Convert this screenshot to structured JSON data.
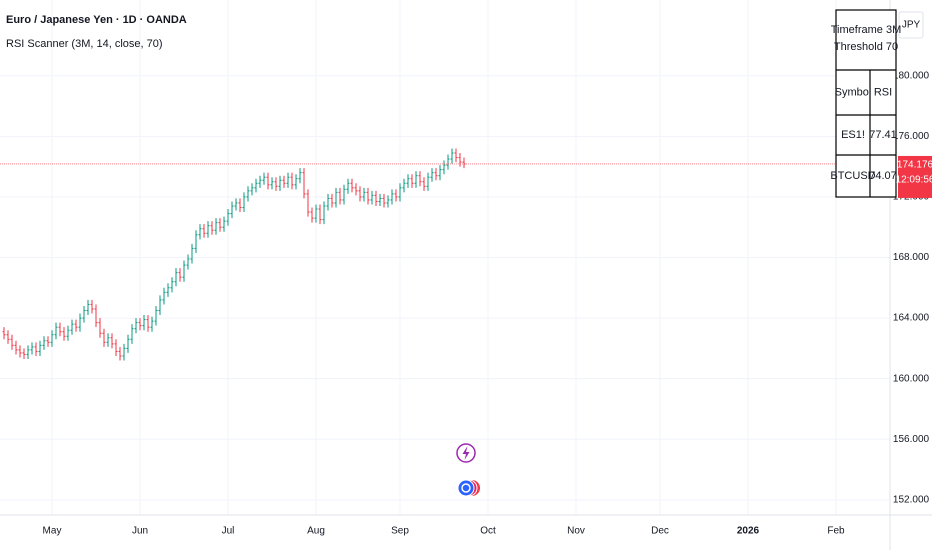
{
  "chart_data": {
    "type": "ohlc",
    "title": "Euro / Japanese Yen · 1D · OANDA",
    "subtitle": "RSI Scanner (3M, 14, close, 70)",
    "y_axis_label": "JPY",
    "up_color": "#089981",
    "down_color": "#f23645",
    "grid": true,
    "last_price": 174.176,
    "countdown": "12:09:56",
    "last_price_color": "#f23645",
    "xlim": [
      -1,
      221.5
    ],
    "xticks": [
      {
        "value": 12,
        "label": "May"
      },
      {
        "value": 34,
        "label": "Jun"
      },
      {
        "value": 56,
        "label": "Jul"
      },
      {
        "value": 78,
        "label": "Aug"
      },
      {
        "value": 99,
        "label": "Sep"
      },
      {
        "value": 121,
        "label": "Oct"
      },
      {
        "value": 143,
        "label": "Nov"
      },
      {
        "value": 164,
        "label": "Dec"
      },
      {
        "value": 186,
        "label": "2026"
      },
      {
        "value": 208,
        "label": "Feb"
      }
    ],
    "ylim": [
      151,
      185
    ],
    "yticks": [
      {
        "value": 152,
        "label": "152.000"
      },
      {
        "value": 156,
        "label": "156.000"
      },
      {
        "value": 160,
        "label": "160.000"
      },
      {
        "value": 164,
        "label": "164.000"
      },
      {
        "value": 168,
        "label": "168.000"
      },
      {
        "value": 172,
        "label": "172.000"
      },
      {
        "value": 176,
        "label": "176.000"
      },
      {
        "value": 180,
        "label": "180.000"
      }
    ],
    "open": [
      163.1,
      162.9,
      162.6,
      162.2,
      161.9,
      161.7,
      161.6,
      161.9,
      162.1,
      161.8,
      162.2,
      162.5,
      162.4,
      162.9,
      163.4,
      163.1,
      162.8,
      163.2,
      163.6,
      163.4,
      164.0,
      164.5,
      164.9,
      164.6,
      163.7,
      163.0,
      162.4,
      162.7,
      162.3,
      161.8,
      161.5,
      162.0,
      162.6,
      163.3,
      163.7,
      163.5,
      163.9,
      163.4,
      163.8,
      164.5,
      165.2,
      165.7,
      166.0,
      166.4,
      167.0,
      166.7,
      167.5,
      167.9,
      168.6,
      169.5,
      169.9,
      169.6,
      170.1,
      169.8,
      170.3,
      170.0,
      170.4,
      170.9,
      171.4,
      171.6,
      171.3,
      172.0,
      172.4,
      172.6,
      172.9,
      173.1,
      173.3,
      172.8,
      173.0,
      172.7,
      173.1,
      172.9,
      173.3,
      172.8,
      173.2,
      173.6,
      172.2,
      171.0,
      170.6,
      171.2,
      170.5,
      171.4,
      171.9,
      171.6,
      172.3,
      171.8,
      172.5,
      172.9,
      172.6,
      172.4,
      172.0,
      172.3,
      171.8,
      172.1,
      171.7,
      171.9,
      171.6,
      171.8,
      172.2,
      172.0,
      172.6,
      172.9,
      173.2,
      172.9,
      173.4,
      173.0,
      172.7,
      173.3,
      173.6,
      173.4,
      173.8,
      174.1,
      174.5,
      174.9,
      174.6,
      174.3
    ],
    "high": [
      163.4,
      163.2,
      162.9,
      162.5,
      162.2,
      162.0,
      162.2,
      162.4,
      162.4,
      162.5,
      162.8,
      162.8,
      163.2,
      163.7,
      163.7,
      163.4,
      163.5,
      163.9,
      163.9,
      164.3,
      164.8,
      165.2,
      165.2,
      164.9,
      164.0,
      163.3,
      163.0,
      163.0,
      162.6,
      162.1,
      162.3,
      162.9,
      163.6,
      164.0,
      164.0,
      164.2,
      164.2,
      164.1,
      164.8,
      165.5,
      166.0,
      166.3,
      166.7,
      167.3,
      167.3,
      167.8,
      168.2,
      168.9,
      169.8,
      170.2,
      170.2,
      170.4,
      170.4,
      170.6,
      170.6,
      170.7,
      171.2,
      171.7,
      171.9,
      171.9,
      172.3,
      172.7,
      172.9,
      173.2,
      173.4,
      173.6,
      173.6,
      173.3,
      173.3,
      173.4,
      173.4,
      173.6,
      173.6,
      173.5,
      173.9,
      173.9,
      172.5,
      171.3,
      171.5,
      171.5,
      171.7,
      172.2,
      172.2,
      172.6,
      172.6,
      172.8,
      173.2,
      173.2,
      172.9,
      172.7,
      172.6,
      172.6,
      172.4,
      172.4,
      172.2,
      172.2,
      172.1,
      172.5,
      172.5,
      172.9,
      173.2,
      173.5,
      173.5,
      173.7,
      173.7,
      173.3,
      173.6,
      173.9,
      173.9,
      174.1,
      174.4,
      174.8,
      175.2,
      175.2,
      174.9,
      174.6
    ],
    "low": [
      162.6,
      162.3,
      161.9,
      161.6,
      161.4,
      161.3,
      161.3,
      161.6,
      161.5,
      161.5,
      161.9,
      162.1,
      162.1,
      162.6,
      162.8,
      162.5,
      162.5,
      162.9,
      163.1,
      163.1,
      163.7,
      164.2,
      164.3,
      163.4,
      162.7,
      162.1,
      162.1,
      162.0,
      161.5,
      161.2,
      161.2,
      161.7,
      162.3,
      163.0,
      163.2,
      163.2,
      163.1,
      163.1,
      163.5,
      164.2,
      164.9,
      165.4,
      165.7,
      166.1,
      166.4,
      166.4,
      167.2,
      167.6,
      168.3,
      169.2,
      169.3,
      169.3,
      169.5,
      169.5,
      169.7,
      169.7,
      170.1,
      170.6,
      171.1,
      171.0,
      171.0,
      171.7,
      172.1,
      172.3,
      172.6,
      172.8,
      172.5,
      172.5,
      172.4,
      172.4,
      172.6,
      172.6,
      172.5,
      172.5,
      172.9,
      171.9,
      170.7,
      170.3,
      170.3,
      170.2,
      170.2,
      171.1,
      171.3,
      171.3,
      171.5,
      171.5,
      172.2,
      172.3,
      172.1,
      171.7,
      171.7,
      171.5,
      171.5,
      171.4,
      171.4,
      171.3,
      171.3,
      171.5,
      171.7,
      171.7,
      172.3,
      172.6,
      172.6,
      172.6,
      172.7,
      172.4,
      172.4,
      173.0,
      173.1,
      173.1,
      173.5,
      173.8,
      174.2,
      174.3,
      174.0,
      173.9
    ],
    "close": [
      162.9,
      162.6,
      162.2,
      161.9,
      161.7,
      161.6,
      161.9,
      162.1,
      161.8,
      162.2,
      162.5,
      162.4,
      162.9,
      163.4,
      163.1,
      162.8,
      163.2,
      163.6,
      163.4,
      164.0,
      164.5,
      164.9,
      164.6,
      163.7,
      163.0,
      162.4,
      162.7,
      162.3,
      161.8,
      161.5,
      162.0,
      162.6,
      163.3,
      163.7,
      163.5,
      163.9,
      163.4,
      163.8,
      164.5,
      165.2,
      165.7,
      166.0,
      166.4,
      167.0,
      166.7,
      167.5,
      167.9,
      168.6,
      169.5,
      169.9,
      169.6,
      170.1,
      169.8,
      170.3,
      170.0,
      170.4,
      170.9,
      171.4,
      171.6,
      171.3,
      172.0,
      172.4,
      172.6,
      172.9,
      173.1,
      173.3,
      172.8,
      173.0,
      172.7,
      173.1,
      172.9,
      173.3,
      172.8,
      173.2,
      173.6,
      172.2,
      171.0,
      170.6,
      171.2,
      170.5,
      171.4,
      171.9,
      171.6,
      172.3,
      171.8,
      172.5,
      172.9,
      172.6,
      172.4,
      172.0,
      172.3,
      171.8,
      172.1,
      171.7,
      171.9,
      171.6,
      171.8,
      172.2,
      172.0,
      172.6,
      172.9,
      173.2,
      172.9,
      173.4,
      173.0,
      172.7,
      173.3,
      173.6,
      173.4,
      173.8,
      174.1,
      174.5,
      174.9,
      174.6,
      174.3,
      174.176
    ]
  },
  "rsi_table": {
    "title_lines": [
      "Timeframe 3M",
      "Threshold 70"
    ],
    "header": [
      "Symbol",
      "RSI"
    ],
    "rows": [
      [
        "ES1!",
        77.41
      ],
      [
        "BTCUSD",
        74.07
      ]
    ]
  }
}
